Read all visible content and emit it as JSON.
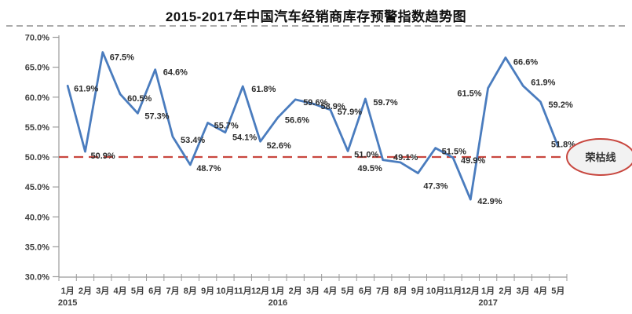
{
  "title": "2015-2017年中国汽车经销商库存预警指数趋势图",
  "annotation": {
    "label": "荣枯线"
  },
  "colors": {
    "trend_line": "#4A7CBE",
    "threshold_line": "#C8473F",
    "axis": "#9b9b9b",
    "annotation_fill": "#F2F2F2",
    "annotation_stroke": "#C8473F"
  },
  "chart_data": {
    "type": "line",
    "title": "2015-2017年中国汽车经销商库存预警指数趋势图",
    "xlabel": "",
    "ylabel": "",
    "ylim": [
      30,
      70
    ],
    "ytick_step": 5,
    "grid": false,
    "legend": "none",
    "threshold_value": 50,
    "threshold_label": "荣枯线",
    "categories": [
      "1月",
      "2月",
      "3月",
      "4月",
      "5月",
      "6月",
      "7月",
      "8月",
      "9月",
      "10月",
      "11月",
      "12月",
      "1月",
      "2月",
      "3月",
      "4月",
      "5月",
      "6月",
      "7月",
      "8月",
      "9月",
      "10月",
      "11月",
      "12月",
      "1月",
      "2月",
      "3月",
      "4月",
      "5月"
    ],
    "years": [
      {
        "label": "2015",
        "index": 0
      },
      {
        "label": "2016",
        "index": 12
      },
      {
        "label": "2017",
        "index": 24
      }
    ],
    "values": [
      61.9,
      50.9,
      67.5,
      60.5,
      57.3,
      64.6,
      53.4,
      48.7,
      55.7,
      54.1,
      61.8,
      52.6,
      56.6,
      59.6,
      58.9,
      57.9,
      51.0,
      59.7,
      49.5,
      49.1,
      47.3,
      51.5,
      49.9,
      42.9,
      61.5,
      66.6,
      61.9,
      59.2,
      51.8
    ],
    "data_labels": [
      "61.9%",
      "50.9%",
      "67.5%",
      "60.5%",
      "57.3%",
      "64.6%",
      "53.4%",
      "48.7%",
      "55.7%",
      "54.1%",
      "61.8%",
      "52.6%",
      "56.6%",
      "59.6%",
      "58.9%",
      "57.9%",
      "51.0%",
      "59.7%",
      "49.5%",
      "49.1%",
      "47.3%",
      "51.5%",
      "49.9%",
      "42.9%",
      "61.5%",
      "66.6%",
      "61.9%",
      "59.2%",
      "51.8%"
    ],
    "ytick_labels": [
      "70.0%",
      "65.0%",
      "60.0%",
      "55.0%",
      "50.0%",
      "45.0%",
      "40.0%",
      "35.0%",
      "30.0%"
    ],
    "ytick_values": [
      70,
      65,
      60,
      55,
      50,
      45,
      40,
      35,
      30
    ],
    "label_offsets": [
      [
        8,
        3,
        "s"
      ],
      [
        7,
        5,
        "s"
      ],
      [
        9,
        6,
        "s"
      ],
      [
        9,
        5,
        "s"
      ],
      [
        9,
        3,
        "s"
      ],
      [
        10,
        3,
        "s"
      ],
      [
        10,
        4,
        "s"
      ],
      [
        8,
        4,
        "s"
      ],
      [
        8,
        3,
        "s"
      ],
      [
        9,
        6,
        "s"
      ],
      [
        11,
        3,
        "s"
      ],
      [
        8,
        5,
        "s"
      ],
      [
        9,
        3,
        "s"
      ],
      [
        10,
        3,
        "s"
      ],
      [
        10,
        3,
        "s"
      ],
      [
        9,
        2,
        "s"
      ],
      [
        8,
        4,
        "s"
      ],
      [
        10,
        4,
        "s"
      ],
      [
        -1,
        10,
        "e"
      ],
      [
        -9,
        -7,
        "s"
      ],
      [
        7,
        16,
        "s"
      ],
      [
        8,
        4,
        "s"
      ],
      [
        10,
        3,
        "s"
      ],
      [
        9,
        2,
        "s"
      ],
      [
        -8,
        6,
        "e"
      ],
      [
        10,
        5,
        "s"
      ],
      [
        10,
        -5,
        "s"
      ],
      [
        10,
        3,
        "s"
      ],
      [
        -9,
        -3,
        "s"
      ]
    ]
  }
}
